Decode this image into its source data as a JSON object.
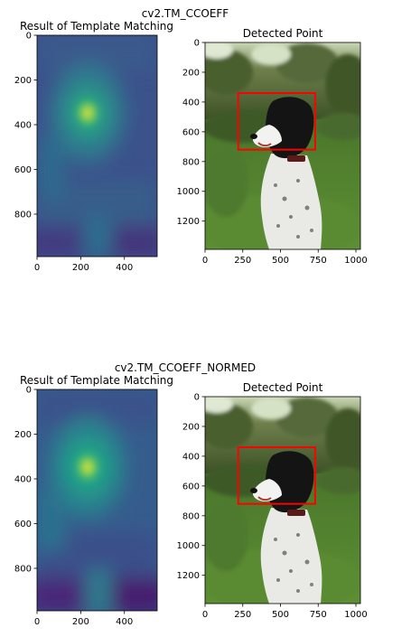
{
  "figures": [
    {
      "suptitle": "cv2.TM_CCOEFF",
      "heatmap_title": "Result of Template Matching",
      "photo_title": "Detected Point",
      "heatmap_peak": {
        "x": 230,
        "y": 350
      }
    },
    {
      "suptitle": "cv2.TM_CCOEFF_NORMED",
      "heatmap_title": "Result of Template Matching",
      "photo_title": "Detected Point",
      "heatmap_peak": {
        "x": 230,
        "y": 350
      }
    }
  ],
  "chart_data": [
    {
      "type": "heatmap",
      "title": "Result of Template Matching",
      "colormap": "viridis",
      "xlim": [
        0,
        550
      ],
      "ylim": [
        990,
        0
      ],
      "xticks": [
        0,
        200,
        400
      ],
      "yticks": [
        0,
        200,
        400,
        600,
        800
      ],
      "peak": {
        "x": 230,
        "y": 350
      }
    },
    {
      "type": "image",
      "title": "Detected Point",
      "xlim": [
        0,
        1030
      ],
      "ylim": [
        1390,
        0
      ],
      "xticks": [
        0,
        250,
        500,
        750,
        1000
      ],
      "yticks": [
        0,
        200,
        400,
        600,
        800,
        1000,
        1200
      ],
      "rectangle": {
        "x0": 220,
        "y0": 340,
        "x1": 730,
        "y1": 720,
        "color": "#ff0000"
      }
    }
  ],
  "colors": {
    "rectangle": "#ff0000"
  }
}
